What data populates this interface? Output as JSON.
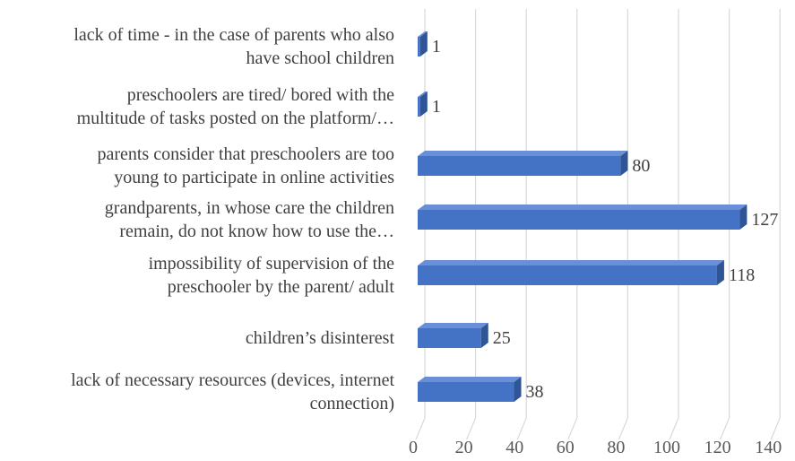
{
  "chart_data": {
    "type": "bar",
    "orientation": "horizontal",
    "style": "3d-clustered-bar",
    "bar_color": "#4472c4",
    "bar_side_color": "#2f5597",
    "bar_top_color": "#6b8fd6",
    "categories": [
      [
        "lack of time - in the case of parents who also",
        "have school children"
      ],
      [
        "preschoolers are tired/ bored with the",
        "multitude of tasks posted on the platform/…"
      ],
      [
        "parents consider that preschoolers are too",
        "young to participate in online activities"
      ],
      [
        "grandparents, in whose care the children",
        "remain, do not know how to use the…"
      ],
      [
        "impossibility of supervision of the",
        "preschooler by the parent/ adult"
      ],
      [
        "children’s disinterest"
      ],
      [
        "lack of necessary resources (devices, internet",
        "connection)"
      ]
    ],
    "values": [
      1,
      1,
      80,
      127,
      118,
      25,
      38
    ],
    "value_labels": [
      "1",
      "1",
      "80",
      "127",
      "118",
      "25",
      "38"
    ],
    "xlim": [
      0,
      140
    ],
    "x_ticks": [
      "0",
      "20",
      "40",
      "60",
      "80",
      "100",
      "120",
      "140"
    ],
    "grid": true,
    "legend": "none",
    "title": "",
    "xlabel": "",
    "ylabel": ""
  }
}
